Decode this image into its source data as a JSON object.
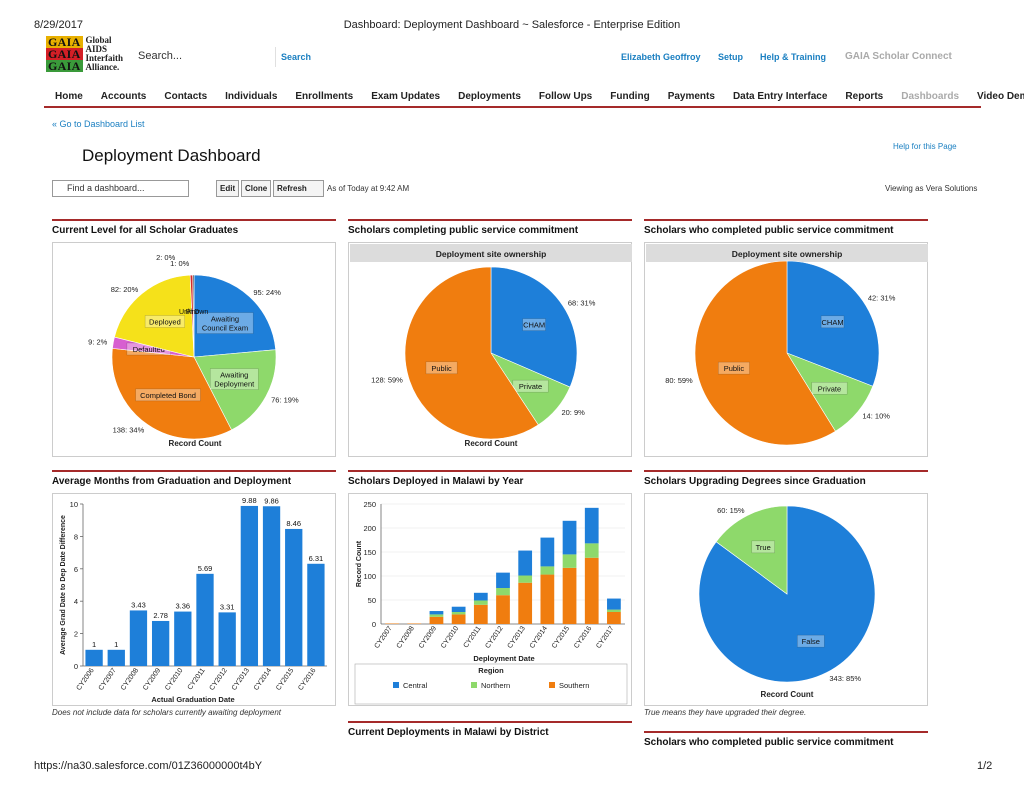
{
  "print": {
    "date": "8/29/2017",
    "title": "Dashboard: Deployment Dashboard ~ Salesforce - Enterprise Edition",
    "url": "https://na30.salesforce.com/01Z36000000t4bY",
    "page": "1/2"
  },
  "logo": {
    "stack": [
      "GAIA",
      "GAIA",
      "GAIA"
    ],
    "lines": [
      "Global",
      "AIDS",
      "Interfaith",
      "Alliance."
    ]
  },
  "header": {
    "search_placeholder": "Search...",
    "search_button": "Search",
    "user": "Elizabeth Geoffroy",
    "setup": "Setup",
    "help": "Help & Training",
    "app": "GAIA Scholar Connect"
  },
  "tabs": [
    {
      "label": "Home",
      "active": false
    },
    {
      "label": "Accounts",
      "active": false
    },
    {
      "label": "Contacts",
      "active": false
    },
    {
      "label": "Individuals",
      "active": false
    },
    {
      "label": "Enrollments",
      "active": false
    },
    {
      "label": "Exam Updates",
      "active": false
    },
    {
      "label": "Deployments",
      "active": false
    },
    {
      "label": "Follow Ups",
      "active": false
    },
    {
      "label": "Funding",
      "active": false
    },
    {
      "label": "Payments",
      "active": false
    },
    {
      "label": "Data Entry Interface",
      "active": false
    },
    {
      "label": "Reports",
      "active": false
    },
    {
      "label": "Dashboards",
      "active": true
    },
    {
      "label": "Video Demos",
      "active": false
    }
  ],
  "page": {
    "back_link": "« Go to Dashboard List",
    "title": "Deployment Dashboard",
    "help_link": "Help for this Page",
    "find_placeholder": "Find a dashboard...",
    "buttons": {
      "edit": "Edit",
      "clone": "Clone",
      "refresh": "Refresh"
    },
    "as_of": "As of Today at 9:42 AM",
    "viewing_as": "Viewing as Vera Solutions"
  },
  "colors": {
    "accent_rule": "#a52a2a",
    "blue": "#1e7fd9",
    "green": "#8ed96b",
    "orange": "#f07d0f",
    "yellow": "#f5e11a",
    "pink": "#d75fd0",
    "red": "#d22a2a",
    "brand_link": "#1a7fc1"
  },
  "panels": [
    {
      "title": "Current Level for all Scholar Graduates"
    },
    {
      "title": "Scholars completing public service commitment"
    },
    {
      "title": "Scholars who completed public service commitment"
    },
    {
      "title": "Average Months from Graduation and Deployment",
      "footnote": "Does not include data for scholars currently awaiting deployment"
    },
    {
      "title": "Scholars Deployed in Malawi by Year"
    },
    {
      "title": "Scholars Upgrading Degrees since Graduation",
      "footnote": "True means they have upgraded their degree."
    },
    {
      "title": "Current Deployments in Malawi by District"
    },
    {
      "title": "Scholars who completed public service commitment"
    }
  ],
  "chart_data": [
    {
      "type": "pie",
      "title": "",
      "xlabel": "Record Count",
      "slices": [
        {
          "label": "Awaiting Council Exam",
          "value": 95,
          "pct": "24%",
          "color": "#1e7fd9"
        },
        {
          "label": "Awaiting Deployment",
          "value": 76,
          "pct": "19%",
          "color": "#8ed96b"
        },
        {
          "label": "Completed Bond",
          "value": 138,
          "pct": "34%",
          "color": "#f07d0f"
        },
        {
          "label": "Defaulted",
          "value": 9,
          "pct": "2%",
          "color": "#d75fd0"
        },
        {
          "label": "Deployed",
          "value": 82,
          "pct": "20%",
          "color": "#f5e11a"
        },
        {
          "label": "PhD",
          "value": 2,
          "pct": "0%",
          "color": "#d22a2a"
        },
        {
          "label": "Unknown",
          "value": 1,
          "pct": "0%",
          "color": "#3a3a3a"
        }
      ]
    },
    {
      "type": "pie",
      "title": "Deployment site ownership",
      "xlabel": "Record Count",
      "slices": [
        {
          "label": "CHAM",
          "value": 68,
          "pct": "31%",
          "color": "#1e7fd9"
        },
        {
          "label": "Private",
          "value": 20,
          "pct": "9%",
          "color": "#8ed96b"
        },
        {
          "label": "Public",
          "value": 128,
          "pct": "59%",
          "color": "#f07d0f"
        }
      ]
    },
    {
      "type": "pie",
      "title": "Deployment site ownership",
      "xlabel": "",
      "slices": [
        {
          "label": "CHAM",
          "value": 42,
          "pct": "31%",
          "color": "#1e7fd9"
        },
        {
          "label": "Private",
          "value": 14,
          "pct": "10%",
          "color": "#8ed96b"
        },
        {
          "label": "Public",
          "value": 80,
          "pct": "59%",
          "color": "#f07d0f"
        }
      ]
    },
    {
      "type": "bar",
      "title": "",
      "xlabel": "Actual Graduation Date",
      "ylabel": "Average Grad Date to Dep Date Difference",
      "ylim": [
        0,
        10
      ],
      "yticks": [
        0,
        2,
        4,
        6,
        8,
        10
      ],
      "categories": [
        "CY2006",
        "CY2007",
        "CY2008",
        "CY2009",
        "CY2010",
        "CY2011",
        "CY2012",
        "CY2013",
        "CY2014",
        "CY2015",
        "CY2016"
      ],
      "values": [
        1,
        1,
        3.43,
        2.78,
        3.36,
        5.69,
        3.31,
        9.88,
        9.86,
        8.46,
        6.31
      ],
      "color": "#1e7fd9"
    },
    {
      "type": "bar",
      "stacked": true,
      "title": "",
      "xlabel": "Deployment Date",
      "ylabel": "Record Count",
      "ylim": [
        0,
        250
      ],
      "yticks": [
        0,
        50,
        100,
        150,
        200,
        250
      ],
      "legend_title": "Region",
      "categories": [
        "CY2007",
        "CY2008",
        "CY2009",
        "CY2010",
        "CY2011",
        "CY2012",
        "CY2013",
        "CY2014",
        "CY2015",
        "CY2016",
        "CY2017"
      ],
      "series": [
        {
          "name": "Southern",
          "color": "#f07d0f",
          "values": [
            1,
            1,
            15,
            20,
            40,
            60,
            86,
            103,
            117,
            138,
            25
          ]
        },
        {
          "name": "Northern",
          "color": "#8ed96b",
          "values": [
            0,
            0,
            5,
            5,
            9,
            15,
            15,
            17,
            28,
            30,
            5
          ]
        },
        {
          "name": "Central",
          "color": "#1e7fd9",
          "values": [
            0,
            0,
            7,
            11,
            16,
            32,
            52,
            60,
            70,
            74,
            23
          ]
        }
      ],
      "legend": [
        "Central",
        "Northern",
        "Southern"
      ]
    },
    {
      "type": "pie",
      "title": "",
      "xlabel": "Record Count",
      "slices": [
        {
          "label": "False",
          "value": 343,
          "pct": "85%",
          "color": "#1e7fd9"
        },
        {
          "label": "True",
          "value": 60,
          "pct": "15%",
          "color": "#8ed96b"
        }
      ]
    }
  ]
}
